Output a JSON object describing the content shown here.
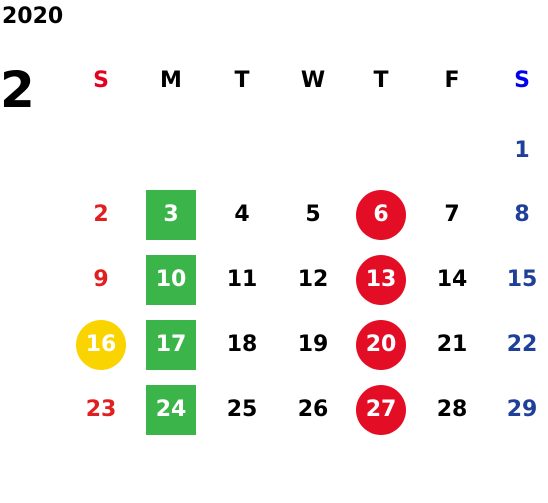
{
  "calendar": {
    "year": "2020",
    "month": "2",
    "weekdays": [
      {
        "label": "S",
        "color": "#e6001f"
      },
      {
        "label": "M",
        "color": "#000000"
      },
      {
        "label": "T",
        "color": "#000000"
      },
      {
        "label": "W",
        "color": "#000000"
      },
      {
        "label": "T",
        "color": "#000000"
      },
      {
        "label": "F",
        "color": "#000000"
      },
      {
        "label": "S",
        "color": "#0000ee"
      }
    ],
    "weeks": [
      [
        null,
        null,
        null,
        null,
        null,
        null,
        "1"
      ],
      [
        "2",
        "3",
        "4",
        "5",
        "6",
        "7",
        "8"
      ],
      [
        "9",
        "10",
        "11",
        "12",
        "13",
        "14",
        "15"
      ],
      [
        "16",
        "17",
        "18",
        "19",
        "20",
        "21",
        "22"
      ],
      [
        "23",
        "24",
        "25",
        "26",
        "27",
        "28",
        "29"
      ]
    ],
    "highlights": {
      "green_square_days": [
        "3",
        "10",
        "17",
        "24"
      ],
      "red_circle_days": [
        "6",
        "13",
        "20",
        "27"
      ],
      "yellow_circle_days": [
        "16"
      ]
    },
    "colors": {
      "sunday_text": "#e02020",
      "saturday_text": "#1f3f99",
      "weekday_text": "#000000",
      "green_fill": "#3bb54a",
      "red_fill": "#e30d25",
      "yellow_fill": "#fad401"
    }
  }
}
